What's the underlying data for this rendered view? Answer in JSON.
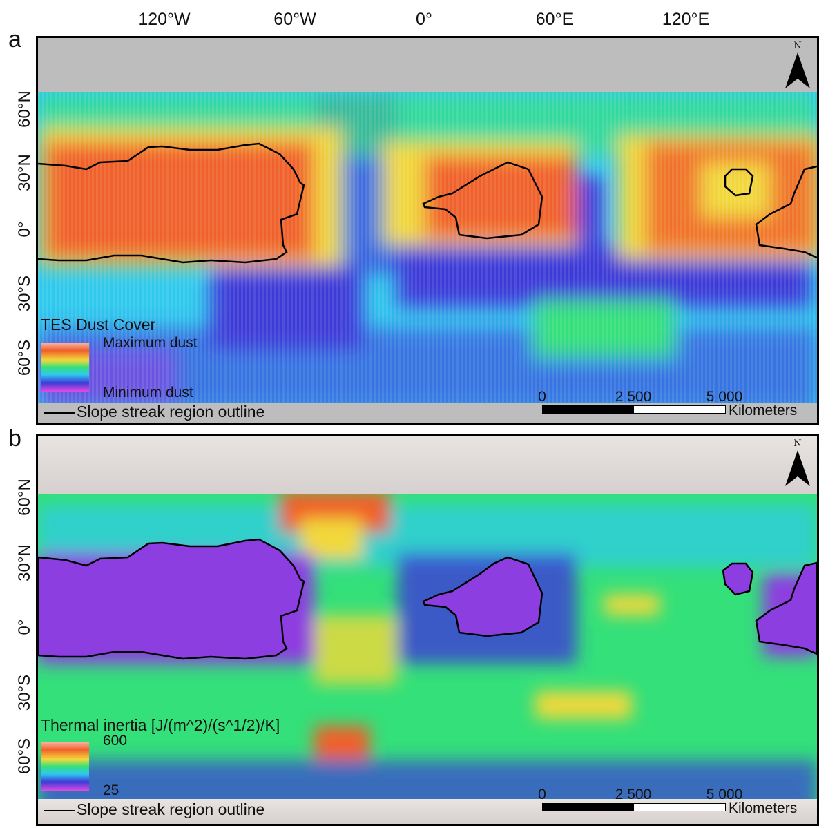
{
  "longitude_labels": [
    "120°W",
    "60°W",
    "0°",
    "60°E",
    "120°E"
  ],
  "latitude_labels": [
    "60°N",
    "30°N",
    "0°",
    "30°S",
    "60°S"
  ],
  "panels": [
    {
      "label": "a",
      "legend_title": "TES Dust Cover",
      "legend_max": "Maximum dust",
      "legend_min": "Minimum dust",
      "outline_label": "Slope streak region outline",
      "scale_ticks": [
        "0",
        "2 500",
        "5 000"
      ],
      "scale_unit": "Kilometers",
      "north_label": "N"
    },
    {
      "label": "b",
      "legend_title": "Thermal inertia [J/(m^2)/(s^1/2)/K]",
      "legend_max": "600",
      "legend_min": "25",
      "outline_label": "Slope streak region outline",
      "scale_ticks": [
        "0",
        "2 500",
        "5 000"
      ],
      "scale_unit": "Kilometers",
      "north_label": "N"
    }
  ],
  "colors": {
    "no_data": "#bdbdbd",
    "high": "#f0602a",
    "mid_high": "#f2d83a",
    "mid": "#34e07a",
    "mid_low": "#2fc9ee",
    "low": "#3d3ad8",
    "very_low": "#8d3ee0",
    "outline": "#000000"
  },
  "icons": [
    "north-arrow-icon"
  ]
}
